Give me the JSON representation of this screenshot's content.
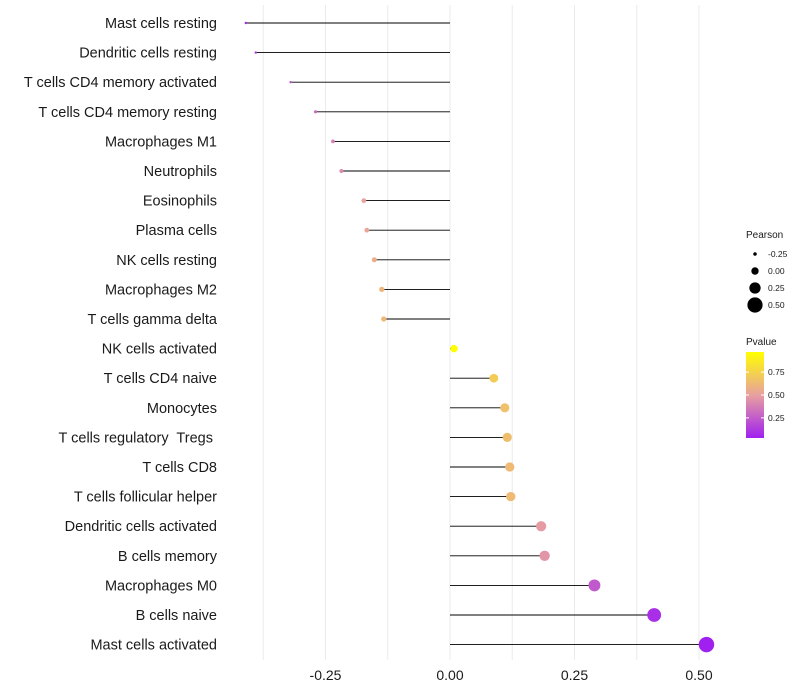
{
  "chart_data": {
    "type": "lollipop",
    "xlabel": "",
    "ylabel": "",
    "xlim": [
      -0.42,
      0.56
    ],
    "x_ticks": [
      -0.25,
      0,
      0.25,
      0.5
    ],
    "x_tick_labels": [
      "-0.25",
      "0.00",
      "0.25",
      "0.50"
    ],
    "grid": true,
    "points": [
      {
        "category": "Mast cells resting",
        "pearson": -0.41,
        "pvalue": 0.05
      },
      {
        "category": "Dendritic cells resting",
        "pearson": -0.39,
        "pvalue": 0.08
      },
      {
        "category": "T cells CD4 memory activated",
        "pearson": -0.32,
        "pvalue": 0.2
      },
      {
        "category": "T cells CD4 memory resting",
        "pearson": -0.27,
        "pvalue": 0.3
      },
      {
        "category": "Macrophages M1",
        "pearson": -0.235,
        "pvalue": 0.38
      },
      {
        "category": "Neutrophils",
        "pearson": -0.218,
        "pvalue": 0.42
      },
      {
        "category": "Eosinophils",
        "pearson": -0.173,
        "pvalue": 0.51
      },
      {
        "category": "Plasma cells",
        "pearson": -0.167,
        "pvalue": 0.53
      },
      {
        "category": "NK cells resting",
        "pearson": -0.152,
        "pvalue": 0.57
      },
      {
        "category": "Macrophages M2",
        "pearson": -0.137,
        "pvalue": 0.61
      },
      {
        "category": "T cells gamma delta",
        "pearson": -0.133,
        "pvalue": 0.62
      },
      {
        "category": "NK cells activated",
        "pearson": 0.008,
        "pvalue": 0.97
      },
      {
        "category": "T cells CD4 naive",
        "pearson": 0.088,
        "pvalue": 0.72
      },
      {
        "category": "Monocytes",
        "pearson": 0.11,
        "pvalue": 0.66
      },
      {
        "category": "T cells regulatory  Tregs ",
        "pearson": 0.115,
        "pvalue": 0.65
      },
      {
        "category": "T cells CD8",
        "pearson": 0.12,
        "pvalue": 0.63
      },
      {
        "category": "T cells follicular helper",
        "pearson": 0.122,
        "pvalue": 0.63
      },
      {
        "category": "Dendritic cells activated",
        "pearson": 0.183,
        "pvalue": 0.48
      },
      {
        "category": "B cells memory",
        "pearson": 0.19,
        "pvalue": 0.46
      },
      {
        "category": "Macrophages M0",
        "pearson": 0.29,
        "pvalue": 0.24
      },
      {
        "category": "B cells naive",
        "pearson": 0.41,
        "pvalue": 0.08
      },
      {
        "category": "Mast cells activated",
        "pearson": 0.515,
        "pvalue": 0.03
      }
    ],
    "legend_size": {
      "title": "Pearson",
      "values": [
        -0.25,
        0,
        0.25,
        0.5
      ],
      "labels": [
        "-0.25",
        "0.00",
        "0.25",
        "0.50"
      ]
    },
    "legend_color": {
      "title": "Pvalue",
      "ticks": [
        0.25,
        0.5,
        0.75
      ],
      "tick_labels": [
        "0.25",
        "0.50",
        "0.75"
      ],
      "range": [
        0.03,
        0.97
      ],
      "low_color": "#a020f0",
      "mid_color": "#e8a0a0",
      "high_color": "#ffff00"
    },
    "legend_position": "right",
    "colors": {
      "stem": "#000000",
      "grid": "#ebebeb",
      "background": "#ffffff"
    }
  }
}
